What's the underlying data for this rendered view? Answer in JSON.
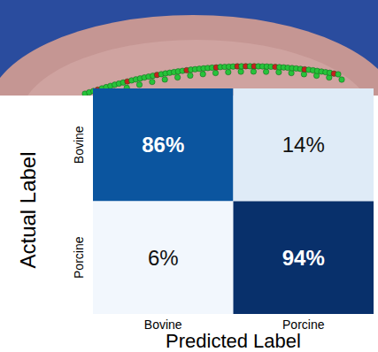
{
  "chart_data": {
    "type": "heatmap",
    "x_label": "Predicted Label",
    "y_label": "Actual Label",
    "categories": [
      "Bovine",
      "Porcine"
    ],
    "y_categories": [
      "Bovine",
      "Porcine"
    ],
    "cells": [
      [
        86,
        14
      ],
      [
        6,
        94
      ]
    ],
    "value_labels": [
      [
        "86%",
        "14%"
      ],
      [
        "6%",
        "94%"
      ]
    ],
    "colors": [
      [
        "#0b559f",
        "#dfebf7"
      ],
      [
        "#f2f7fd",
        "#08306b"
      ]
    ],
    "data_labels": true
  }
}
